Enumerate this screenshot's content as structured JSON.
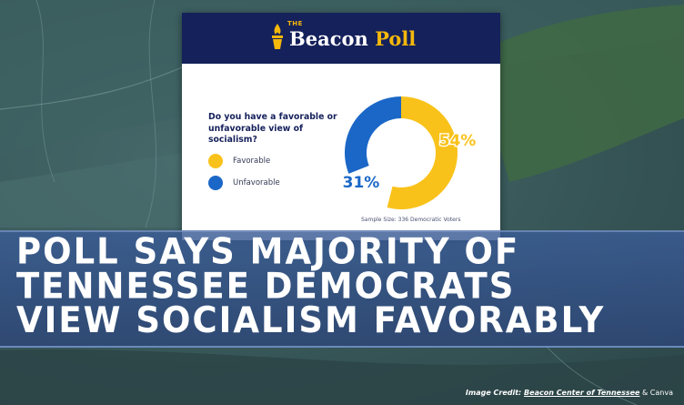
{
  "card": {
    "brand_small": "THE",
    "brand_name": "Beacon",
    "brand_accent": "Poll",
    "question": "Do you have a favorable or unfavorable view of socialism?",
    "sample_size": "Sample Size: 336 Democratic Voters"
  },
  "chart_data": {
    "type": "pie",
    "style": "donut",
    "categories": [
      "Favorable",
      "Unfavorable"
    ],
    "values": [
      54,
      31
    ],
    "data_labels": [
      "54%",
      "31%"
    ],
    "colors": [
      "#f9c21b",
      "#1b67c7"
    ],
    "remainder_color": "#ffffff",
    "title": "",
    "legend_placement": "left"
  },
  "headline": {
    "line1": "POLL SAYS MAJORITY OF",
    "line2": "TENNESSEE DEMOCRATS",
    "line3": "VIEW SOCIALISM FAVORABLY"
  },
  "credit": {
    "prefix": "Image Credit: ",
    "source": "Beacon Center of Tennessee",
    "suffix": " & Canva"
  },
  "colors": {
    "header_bg": "#15215b",
    "brand_gold": "#f5b80b",
    "headline_bar": "#3a5c96"
  }
}
